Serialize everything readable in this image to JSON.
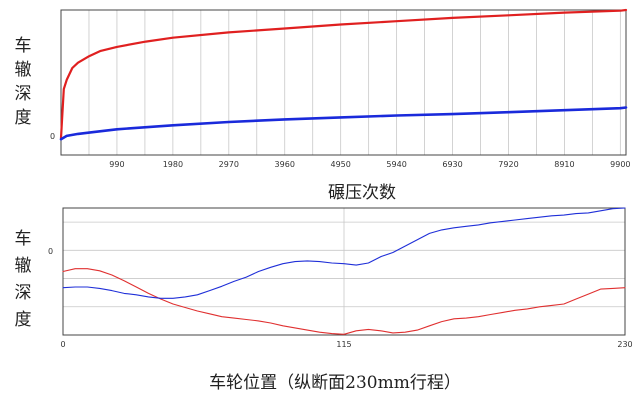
{
  "chart_data": [
    {
      "type": "line",
      "ylabel": "车辙深度",
      "xlabel": "碾压次数",
      "xlim": [
        0,
        10000
      ],
      "xticks": [
        "990",
        "1980",
        "2970",
        "3960",
        "4950",
        "5940",
        "6930",
        "7920",
        "8910",
        "9900"
      ],
      "yticks": [
        "0"
      ],
      "ylim": [
        -1,
        10
      ],
      "grid": true,
      "series": [
        {
          "color": "#e02020",
          "x": [
            0,
            50,
            100,
            200,
            300,
            500,
            700,
            990,
            1500,
            1980,
            2970,
            3960,
            4950,
            5940,
            6930,
            7920,
            8910,
            9900,
            10000
          ],
          "values": [
            0.3,
            4.0,
            4.7,
            5.6,
            6.0,
            6.5,
            6.9,
            7.2,
            7.6,
            7.9,
            8.3,
            8.6,
            8.9,
            9.15,
            9.4,
            9.6,
            9.8,
            9.95,
            10.0
          ]
        },
        {
          "color": "#1a2adb",
          "x": [
            0,
            100,
            300,
            500,
            990,
            1980,
            2970,
            3960,
            4950,
            5940,
            6930,
            7920,
            8910,
            9900,
            10000
          ],
          "values": [
            0.2,
            0.45,
            0.6,
            0.7,
            0.95,
            1.25,
            1.5,
            1.7,
            1.85,
            2.0,
            2.1,
            2.25,
            2.4,
            2.55,
            2.6
          ]
        }
      ]
    },
    {
      "type": "line",
      "ylabel": "车辙深度",
      "xlabel": "车轮位置（纵断面230mm行程）",
      "xlim": [
        0,
        230
      ],
      "xticks": [
        "0",
        "115",
        "230"
      ],
      "yticks": [
        "0"
      ],
      "ylim": [
        -12,
        6
      ],
      "grid": true,
      "series": [
        {
          "color": "#e03030",
          "x": [
            0,
            5,
            10,
            15,
            20,
            25,
            30,
            35,
            40,
            45,
            50,
            55,
            60,
            65,
            70,
            75,
            80,
            85,
            90,
            95,
            100,
            105,
            110,
            115,
            120,
            125,
            130,
            135,
            140,
            145,
            150,
            155,
            160,
            165,
            170,
            175,
            180,
            185,
            190,
            195,
            200,
            205,
            210,
            215,
            220,
            225,
            230
          ],
          "values": [
            -3.0,
            -2.6,
            -2.6,
            -2.9,
            -3.5,
            -4.3,
            -5.2,
            -6.1,
            -6.9,
            -7.6,
            -8.1,
            -8.6,
            -9.0,
            -9.4,
            -9.6,
            -9.8,
            -10.0,
            -10.3,
            -10.7,
            -11.0,
            -11.3,
            -11.6,
            -11.8,
            -11.9,
            -11.4,
            -11.2,
            -11.4,
            -11.7,
            -11.6,
            -11.3,
            -10.7,
            -10.1,
            -9.7,
            -9.6,
            -9.4,
            -9.1,
            -8.8,
            -8.5,
            -8.3,
            -8.0,
            -7.8,
            -7.6,
            -6.9,
            -6.2,
            -5.5,
            -5.4,
            -5.3
          ]
        },
        {
          "color": "#1f2fd8",
          "x": [
            0,
            5,
            10,
            15,
            20,
            25,
            30,
            35,
            40,
            45,
            50,
            55,
            60,
            65,
            70,
            75,
            80,
            85,
            90,
            95,
            100,
            105,
            110,
            115,
            120,
            125,
            130,
            135,
            140,
            145,
            150,
            155,
            160,
            165,
            170,
            175,
            180,
            185,
            190,
            195,
            200,
            205,
            210,
            215,
            220,
            225,
            230
          ],
          "values": [
            -5.3,
            -5.2,
            -5.2,
            -5.4,
            -5.7,
            -6.1,
            -6.3,
            -6.6,
            -6.8,
            -6.8,
            -6.6,
            -6.3,
            -5.7,
            -5.1,
            -4.4,
            -3.8,
            -3.0,
            -2.4,
            -1.9,
            -1.6,
            -1.5,
            -1.6,
            -1.8,
            -1.9,
            -2.1,
            -1.8,
            -0.9,
            -0.3,
            0.6,
            1.5,
            2.4,
            2.9,
            3.2,
            3.4,
            3.6,
            3.9,
            4.1,
            4.3,
            4.5,
            4.7,
            4.9,
            5.0,
            5.2,
            5.3,
            5.6,
            5.9,
            6.0
          ]
        }
      ]
    }
  ]
}
